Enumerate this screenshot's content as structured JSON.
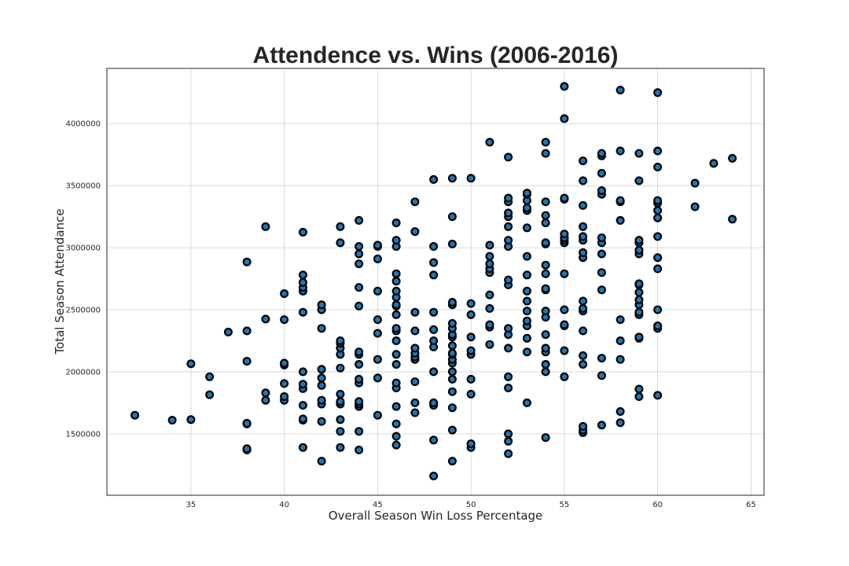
{
  "chart_data": {
    "type": "scatter",
    "title": "Attendence vs. Wins (2006-2016)",
    "xlabel": "Overall Season Win Loss Percentage",
    "ylabel": "Total Season Attendance",
    "xlim": [
      30.5,
      65.7
    ],
    "ylim": [
      1005000,
      4445000
    ],
    "xticks": [
      35,
      40,
      45,
      50,
      55,
      60,
      65
    ],
    "yticks": [
      1500000,
      2000000,
      2500000,
      3000000,
      3500000,
      4000000
    ],
    "grid": true,
    "marker_color": "#1f77b4",
    "edge_color": "#000000",
    "points": [
      [
        32,
        1650000
      ],
      [
        34,
        1610000
      ],
      [
        35,
        1615000
      ],
      [
        35,
        2065000
      ],
      [
        36,
        1815000
      ],
      [
        36,
        1960000
      ],
      [
        37,
        2320000
      ],
      [
        38,
        1370000
      ],
      [
        38,
        1380000
      ],
      [
        38,
        1580000
      ],
      [
        38,
        1585000
      ],
      [
        38,
        2085000
      ],
      [
        38,
        2330000
      ],
      [
        38,
        2885000
      ],
      [
        39,
        1770000
      ],
      [
        39,
        1830000
      ],
      [
        39,
        2425000
      ],
      [
        39,
        3170000
      ],
      [
        40,
        1770000
      ],
      [
        40,
        1800000
      ],
      [
        40,
        1905000
      ],
      [
        40,
        2055000
      ],
      [
        40,
        2070000
      ],
      [
        40,
        2420000
      ],
      [
        40,
        2630000
      ],
      [
        41,
        1390000
      ],
      [
        41,
        1610000
      ],
      [
        41,
        1620000
      ],
      [
        41,
        1730000
      ],
      [
        41,
        1865000
      ],
      [
        41,
        1900000
      ],
      [
        41,
        2000000
      ],
      [
        41,
        2480000
      ],
      [
        41,
        2650000
      ],
      [
        41,
        2680000
      ],
      [
        41,
        2720000
      ],
      [
        41,
        2780000
      ],
      [
        41,
        3125000
      ],
      [
        42,
        1280000
      ],
      [
        42,
        1600000
      ],
      [
        42,
        1740000
      ],
      [
        42,
        1770000
      ],
      [
        42,
        1890000
      ],
      [
        42,
        1950000
      ],
      [
        42,
        2020000
      ],
      [
        42,
        2350000
      ],
      [
        42,
        2500000
      ],
      [
        42,
        2540000
      ],
      [
        43,
        1390000
      ],
      [
        43,
        1520000
      ],
      [
        43,
        1615000
      ],
      [
        43,
        1740000
      ],
      [
        43,
        1760000
      ],
      [
        43,
        1820000
      ],
      [
        43,
        2030000
      ],
      [
        43,
        2140000
      ],
      [
        43,
        2190000
      ],
      [
        43,
        2230000
      ],
      [
        43,
        2250000
      ],
      [
        43,
        3040000
      ],
      [
        43,
        3170000
      ],
      [
        44,
        1370000
      ],
      [
        44,
        1520000
      ],
      [
        44,
        1720000
      ],
      [
        44,
        1740000
      ],
      [
        44,
        1760000
      ],
      [
        44,
        1910000
      ],
      [
        44,
        1940000
      ],
      [
        44,
        2060000
      ],
      [
        44,
        2140000
      ],
      [
        44,
        2160000
      ],
      [
        44,
        2530000
      ],
      [
        44,
        2680000
      ],
      [
        44,
        2870000
      ],
      [
        44,
        2950000
      ],
      [
        44,
        3010000
      ],
      [
        44,
        3220000
      ],
      [
        45,
        1650000
      ],
      [
        45,
        1950000
      ],
      [
        45,
        2100000
      ],
      [
        45,
        2310000
      ],
      [
        45,
        2420000
      ],
      [
        45,
        2650000
      ],
      [
        45,
        2910000
      ],
      [
        45,
        3010000
      ],
      [
        45,
        3020000
      ],
      [
        46,
        1410000
      ],
      [
        46,
        1480000
      ],
      [
        46,
        1580000
      ],
      [
        46,
        1720000
      ],
      [
        46,
        1870000
      ],
      [
        46,
        1910000
      ],
      [
        46,
        2060000
      ],
      [
        46,
        2140000
      ],
      [
        46,
        2250000
      ],
      [
        46,
        2330000
      ],
      [
        46,
        2350000
      ],
      [
        46,
        2460000
      ],
      [
        46,
        2530000
      ],
      [
        46,
        2540000
      ],
      [
        46,
        2600000
      ],
      [
        46,
        2650000
      ],
      [
        46,
        2730000
      ],
      [
        46,
        2790000
      ],
      [
        46,
        3010000
      ],
      [
        46,
        3060000
      ],
      [
        46,
        3200000
      ],
      [
        47,
        1670000
      ],
      [
        47,
        1750000
      ],
      [
        47,
        1920000
      ],
      [
        47,
        2100000
      ],
      [
        47,
        2120000
      ],
      [
        47,
        2150000
      ],
      [
        47,
        2190000
      ],
      [
        47,
        2330000
      ],
      [
        47,
        2480000
      ],
      [
        47,
        3130000
      ],
      [
        47,
        3370000
      ],
      [
        48,
        1160000
      ],
      [
        48,
        1450000
      ],
      [
        48,
        1730000
      ],
      [
        48,
        1750000
      ],
      [
        48,
        2000000
      ],
      [
        48,
        2200000
      ],
      [
        48,
        2250000
      ],
      [
        48,
        2340000
      ],
      [
        48,
        2480000
      ],
      [
        48,
        2780000
      ],
      [
        48,
        2880000
      ],
      [
        48,
        3010000
      ],
      [
        48,
        3550000
      ],
      [
        49,
        1280000
      ],
      [
        49,
        1530000
      ],
      [
        49,
        1710000
      ],
      [
        49,
        1840000
      ],
      [
        49,
        1940000
      ],
      [
        49,
        2000000
      ],
      [
        49,
        2070000
      ],
      [
        49,
        2100000
      ],
      [
        49,
        2140000
      ],
      [
        49,
        2150000
      ],
      [
        49,
        2210000
      ],
      [
        49,
        2280000
      ],
      [
        49,
        2300000
      ],
      [
        49,
        2350000
      ],
      [
        49,
        2390000
      ],
      [
        49,
        2540000
      ],
      [
        49,
        2560000
      ],
      [
        49,
        3030000
      ],
      [
        49,
        3250000
      ],
      [
        49,
        3560000
      ],
      [
        50,
        1390000
      ],
      [
        50,
        1420000
      ],
      [
        50,
        1820000
      ],
      [
        50,
        1940000
      ],
      [
        50,
        2140000
      ],
      [
        50,
        2170000
      ],
      [
        50,
        2280000
      ],
      [
        50,
        2460000
      ],
      [
        50,
        2550000
      ],
      [
        50,
        3560000
      ],
      [
        51,
        2220000
      ],
      [
        51,
        2360000
      ],
      [
        51,
        2380000
      ],
      [
        51,
        2510000
      ],
      [
        51,
        2620000
      ],
      [
        51,
        2800000
      ],
      [
        51,
        2830000
      ],
      [
        51,
        2870000
      ],
      [
        51,
        2930000
      ],
      [
        51,
        3020000
      ],
      [
        51,
        3850000
      ],
      [
        52,
        1340000
      ],
      [
        52,
        1440000
      ],
      [
        52,
        1500000
      ],
      [
        52,
        1870000
      ],
      [
        52,
        1960000
      ],
      [
        52,
        2190000
      ],
      [
        52,
        2300000
      ],
      [
        52,
        2350000
      ],
      [
        52,
        2700000
      ],
      [
        52,
        2740000
      ],
      [
        52,
        3010000
      ],
      [
        52,
        3060000
      ],
      [
        52,
        3170000
      ],
      [
        52,
        3250000
      ],
      [
        52,
        3280000
      ],
      [
        52,
        3370000
      ],
      [
        52,
        3400000
      ],
      [
        52,
        3730000
      ],
      [
        53,
        1750000
      ],
      [
        53,
        2160000
      ],
      [
        53,
        2270000
      ],
      [
        53,
        2370000
      ],
      [
        53,
        2410000
      ],
      [
        53,
        2490000
      ],
      [
        53,
        2570000
      ],
      [
        53,
        2650000
      ],
      [
        53,
        2780000
      ],
      [
        53,
        2930000
      ],
      [
        53,
        3160000
      ],
      [
        53,
        3300000
      ],
      [
        53,
        3320000
      ],
      [
        53,
        3380000
      ],
      [
        53,
        3430000
      ],
      [
        53,
        3440000
      ],
      [
        54,
        1470000
      ],
      [
        54,
        2000000
      ],
      [
        54,
        2060000
      ],
      [
        54,
        2160000
      ],
      [
        54,
        2190000
      ],
      [
        54,
        2300000
      ],
      [
        54,
        2440000
      ],
      [
        54,
        2490000
      ],
      [
        54,
        2660000
      ],
      [
        54,
        2670000
      ],
      [
        54,
        2790000
      ],
      [
        54,
        2860000
      ],
      [
        54,
        3030000
      ],
      [
        54,
        3040000
      ],
      [
        54,
        3200000
      ],
      [
        54,
        3260000
      ],
      [
        54,
        3370000
      ],
      [
        54,
        3760000
      ],
      [
        54,
        3850000
      ],
      [
        55,
        1960000
      ],
      [
        55,
        2170000
      ],
      [
        55,
        2370000
      ],
      [
        55,
        2380000
      ],
      [
        55,
        2500000
      ],
      [
        55,
        2790000
      ],
      [
        55,
        3040000
      ],
      [
        55,
        3060000
      ],
      [
        55,
        3080000
      ],
      [
        55,
        3110000
      ],
      [
        55,
        3390000
      ],
      [
        55,
        3400000
      ],
      [
        55,
        4040000
      ],
      [
        55,
        4300000
      ],
      [
        56,
        1510000
      ],
      [
        56,
        1530000
      ],
      [
        56,
        1560000
      ],
      [
        56,
        2060000
      ],
      [
        56,
        2130000
      ],
      [
        56,
        2330000
      ],
      [
        56,
        2490000
      ],
      [
        56,
        2510000
      ],
      [
        56,
        2570000
      ],
      [
        56,
        2920000
      ],
      [
        56,
        2960000
      ],
      [
        56,
        3060000
      ],
      [
        56,
        3090000
      ],
      [
        56,
        3170000
      ],
      [
        56,
        3340000
      ],
      [
        56,
        3540000
      ],
      [
        56,
        3700000
      ],
      [
        57,
        1570000
      ],
      [
        57,
        1970000
      ],
      [
        57,
        2110000
      ],
      [
        57,
        2660000
      ],
      [
        57,
        2800000
      ],
      [
        57,
        2950000
      ],
      [
        57,
        3040000
      ],
      [
        57,
        3080000
      ],
      [
        57,
        3430000
      ],
      [
        57,
        3460000
      ],
      [
        57,
        3600000
      ],
      [
        57,
        3740000
      ],
      [
        57,
        3760000
      ],
      [
        58,
        1590000
      ],
      [
        58,
        1680000
      ],
      [
        58,
        2100000
      ],
      [
        58,
        2250000
      ],
      [
        58,
        2420000
      ],
      [
        58,
        3220000
      ],
      [
        58,
        3370000
      ],
      [
        58,
        3380000
      ],
      [
        58,
        3780000
      ],
      [
        58,
        4270000
      ],
      [
        59,
        1800000
      ],
      [
        59,
        1860000
      ],
      [
        59,
        2270000
      ],
      [
        59,
        2280000
      ],
      [
        59,
        2460000
      ],
      [
        59,
        2480000
      ],
      [
        59,
        2540000
      ],
      [
        59,
        2580000
      ],
      [
        59,
        2640000
      ],
      [
        59,
        2700000
      ],
      [
        59,
        2710000
      ],
      [
        59,
        2950000
      ],
      [
        59,
        2980000
      ],
      [
        59,
        3040000
      ],
      [
        59,
        3060000
      ],
      [
        59,
        3540000
      ],
      [
        59,
        3760000
      ],
      [
        60,
        1810000
      ],
      [
        60,
        2350000
      ],
      [
        60,
        2370000
      ],
      [
        60,
        2500000
      ],
      [
        60,
        2830000
      ],
      [
        60,
        2920000
      ],
      [
        60,
        3090000
      ],
      [
        60,
        3240000
      ],
      [
        60,
        3300000
      ],
      [
        60,
        3360000
      ],
      [
        60,
        3380000
      ],
      [
        60,
        3650000
      ],
      [
        60,
        3780000
      ],
      [
        60,
        4250000
      ],
      [
        62,
        3330000
      ],
      [
        62,
        3520000
      ],
      [
        63,
        3680000
      ],
      [
        64,
        3230000
      ],
      [
        64,
        3720000
      ]
    ]
  }
}
